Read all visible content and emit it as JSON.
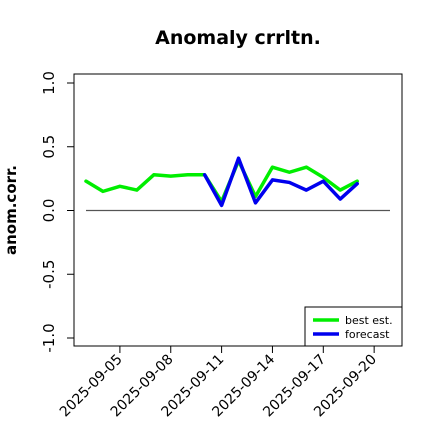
{
  "chart_data": {
    "type": "line",
    "title": "Anomaly crrltn.",
    "ylabel": "anom.corr.",
    "xlabel": "",
    "ylim": [
      -1.0,
      1.0
    ],
    "yticks": [
      -1.0,
      -0.5,
      0.0,
      0.5,
      1.0
    ],
    "ytick_labels": [
      "-1.0",
      "-0.5",
      "0.0",
      "0.5",
      "1.0"
    ],
    "x": [
      "2025-09-03",
      "2025-09-04",
      "2025-09-05",
      "2025-09-06",
      "2025-09-07",
      "2025-09-08",
      "2025-09-09",
      "2025-09-10",
      "2025-09-11",
      "2025-09-12",
      "2025-09-13",
      "2025-09-14",
      "2025-09-15",
      "2025-09-16",
      "2025-09-17",
      "2025-09-18",
      "2025-09-19",
      "2025-09-20"
    ],
    "xtick_labels": [
      "2025-09-05",
      "2025-09-08",
      "2025-09-11",
      "2025-09-14",
      "2025-09-17",
      "2025-09-20"
    ],
    "highlight_tick": "2025-09-11",
    "highlight_color": "#228b22",
    "reference_line": 0.0,
    "series": [
      {
        "name": "best est.",
        "color": "#00ee00",
        "values": [
          0.23,
          0.15,
          0.19,
          0.16,
          0.28,
          0.27,
          0.28,
          0.28,
          0.07,
          0.39,
          0.11,
          0.34,
          0.3,
          0.34,
          0.26,
          0.16,
          0.23,
          null
        ]
      },
      {
        "name": "forecast",
        "color": "#0000ee",
        "values": [
          null,
          null,
          null,
          null,
          null,
          null,
          null,
          0.28,
          0.04,
          0.41,
          0.06,
          0.24,
          0.22,
          0.16,
          0.23,
          0.09,
          0.21,
          null
        ]
      }
    ],
    "legend_position": "bottom-right",
    "grid": false
  }
}
